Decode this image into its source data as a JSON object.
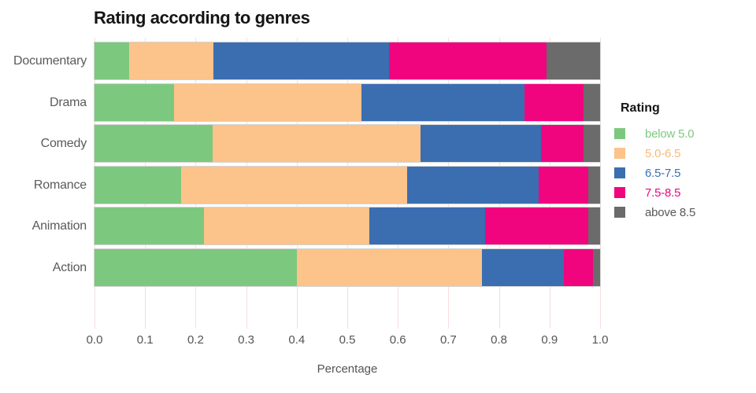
{
  "title": "Rating according to genres",
  "legend": {
    "title": "Rating"
  },
  "chart_data": {
    "type": "bar",
    "orientation": "horizontal",
    "stacked": true,
    "title": "Rating according to genres",
    "xlabel": "Percentage",
    "ylabel": "",
    "xlim": [
      0,
      1.0
    ],
    "grid": true,
    "gridline_color": "#f7dcde",
    "legend_position": "right",
    "legend_title": "Rating",
    "categories": [
      "Documentary",
      "Drama",
      "Comedy",
      "Romance",
      "Animation",
      "Action"
    ],
    "xticks": [
      "0.0",
      "0.1",
      "0.2",
      "0.3",
      "0.4",
      "0.5",
      "0.6",
      "0.7",
      "0.8",
      "0.9",
      "1.0"
    ],
    "series": [
      {
        "name": "below 5.0",
        "color": "#7dc87f",
        "text_color": "#7dc87f",
        "values": [
          0.068,
          0.158,
          0.234,
          0.172,
          0.216,
          0.4
        ]
      },
      {
        "name": "5.0-6.5",
        "color": "#fcc38a",
        "text_color": "#f9b877",
        "values": [
          0.168,
          0.37,
          0.411,
          0.447,
          0.328,
          0.367
        ]
      },
      {
        "name": "6.5-7.5",
        "color": "#3b6eb1",
        "text_color": "#3b6eb1",
        "values": [
          0.346,
          0.322,
          0.238,
          0.259,
          0.228,
          0.162
        ]
      },
      {
        "name": "7.5-8.5",
        "color": "#f0057f",
        "text_color": "#f0057f",
        "values": [
          0.312,
          0.117,
          0.085,
          0.098,
          0.204,
          0.057
        ]
      },
      {
        "name": "above 8.5",
        "color": "#6b6b6b",
        "text_color": "#55585a",
        "values": [
          0.106,
          0.033,
          0.032,
          0.024,
          0.024,
          0.014
        ]
      }
    ]
  }
}
